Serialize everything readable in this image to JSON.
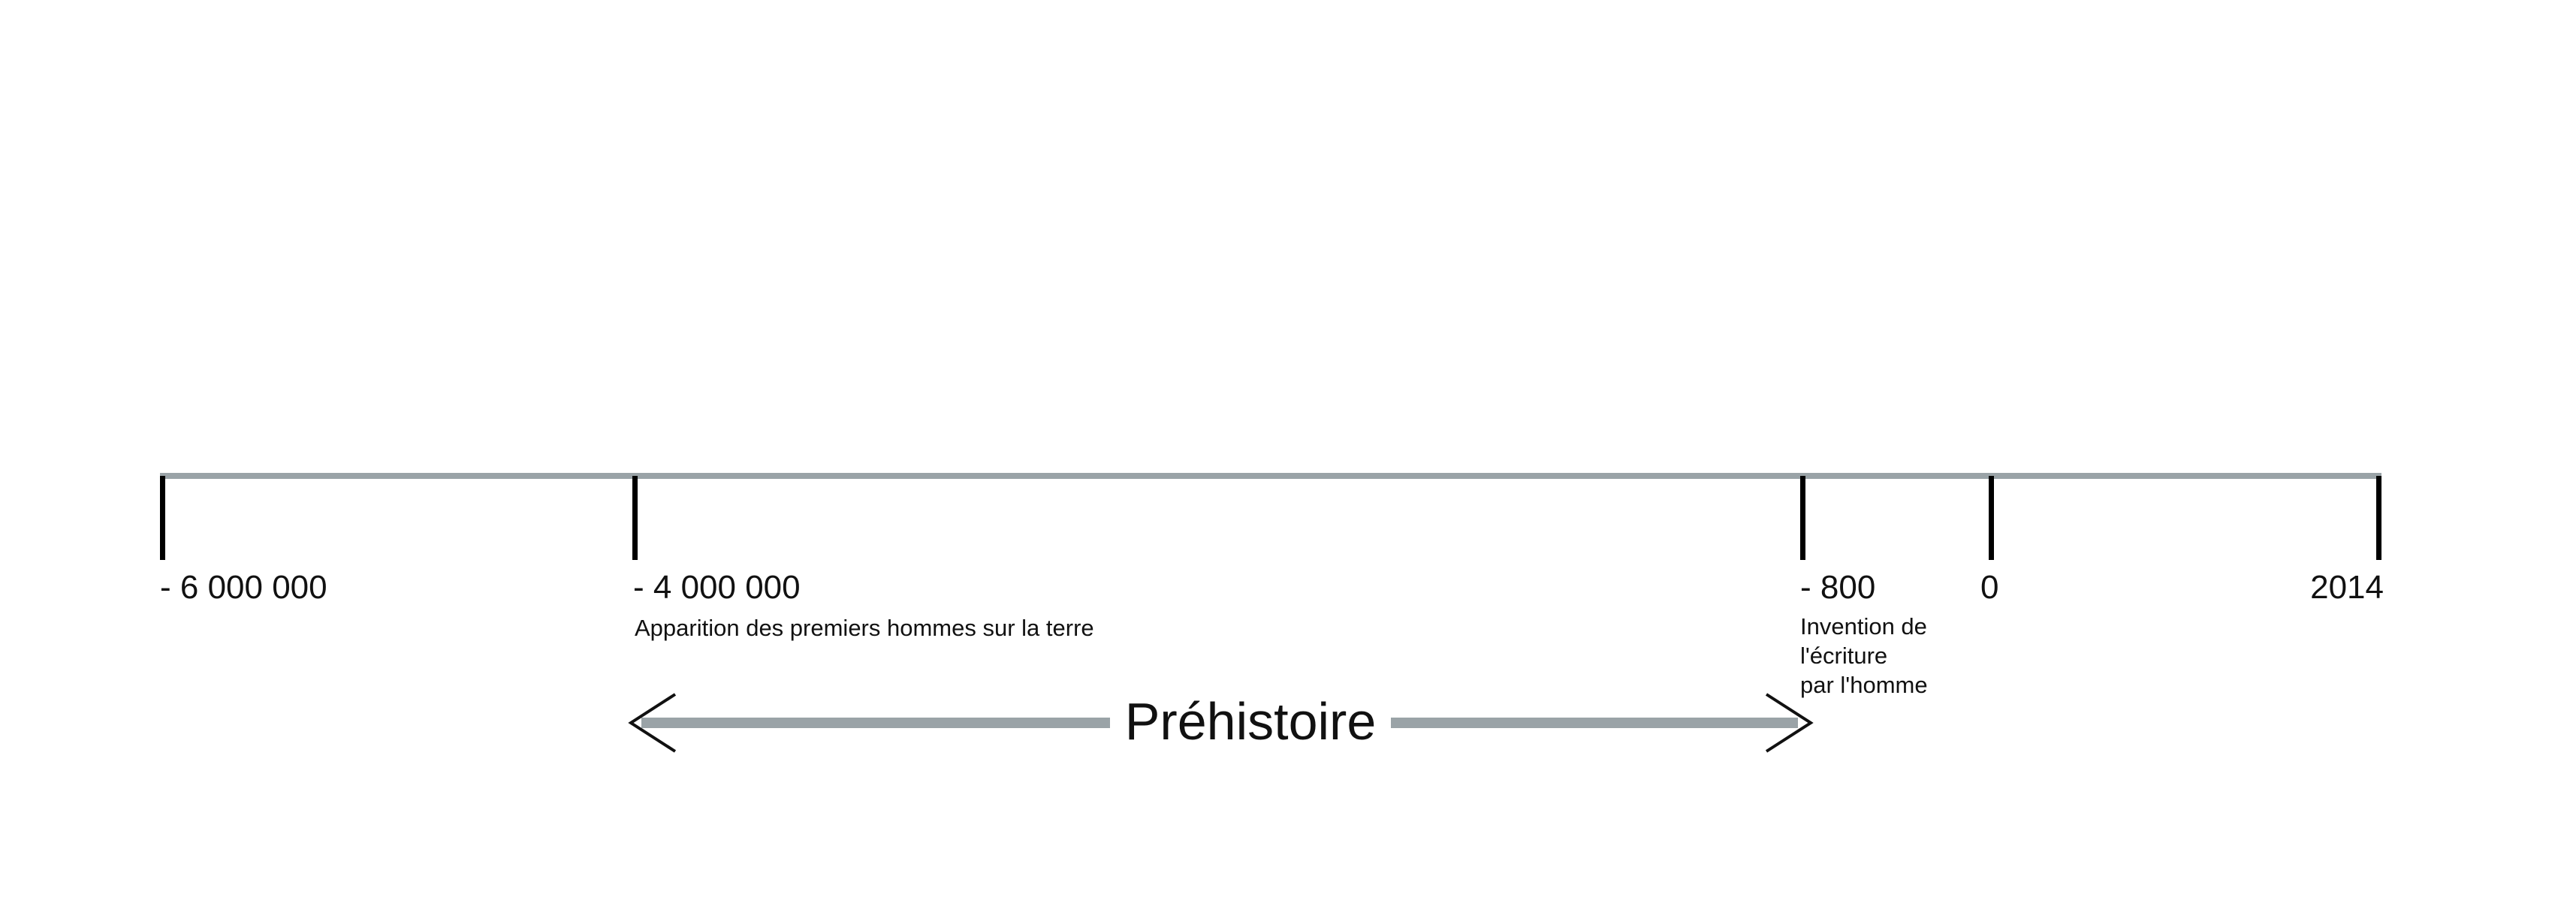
{
  "timeline": {
    "line_color": "#9aa3a7",
    "tick_color": "#000000",
    "ticks": [
      {
        "label": "- 6 000 000"
      },
      {
        "label": "- 4 000 000"
      },
      {
        "label": "- 800"
      },
      {
        "label": "0"
      },
      {
        "label": "2014"
      }
    ],
    "events": [
      {
        "lines": [
          "Apparition des premiers hommes sur la terre"
        ]
      },
      {
        "lines": [
          "Invention de",
          "l'écriture",
          "par l'homme"
        ]
      }
    ],
    "period": {
      "label": "Préhistoire",
      "from": "- 4 000 000",
      "to": "- 800",
      "bar_color": "#9aa3a7"
    }
  }
}
